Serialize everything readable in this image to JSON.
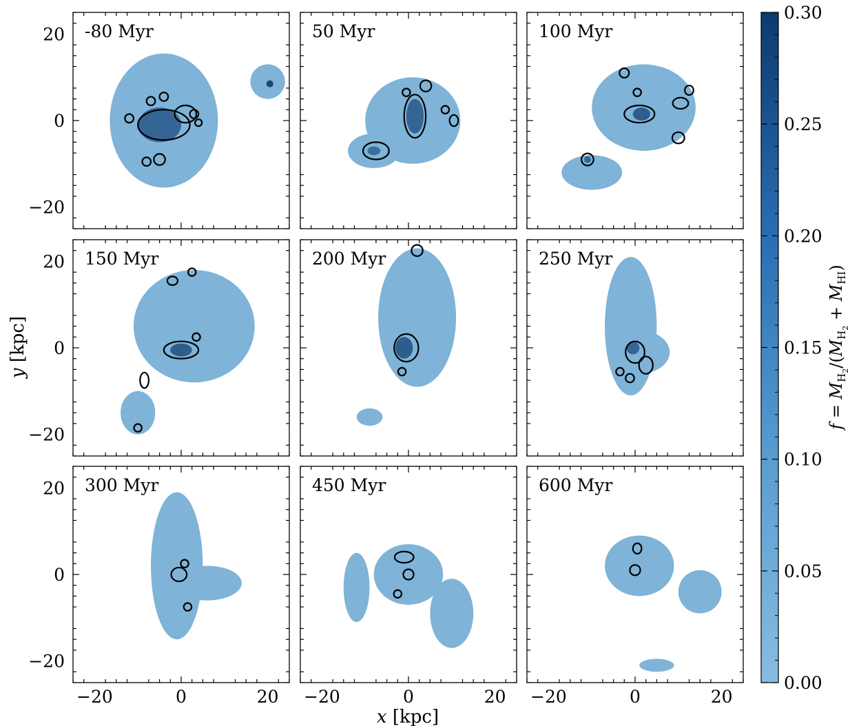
{
  "chart_data": {
    "type": "heatmap",
    "layout": "3x3 panel grid, shared axes",
    "xlabel": "x [kpc]",
    "ylabel": "y [kpc]",
    "xlim": [
      -25,
      25
    ],
    "ylim": [
      -25,
      25
    ],
    "x_ticks": [
      "−20",
      "0",
      "20"
    ],
    "y_ticks": [
      "20",
      "0",
      "−20"
    ],
    "colorbar": {
      "label": "f = M_H2/(M_H2 + M_HI)",
      "range": [
        0.0,
        0.3
      ],
      "ticks": [
        "0.00",
        "0.05",
        "0.10",
        "0.15",
        "0.20",
        "0.25",
        "0.30"
      ],
      "colormap": "Blues",
      "color_min": "#87bcdf",
      "color_max": "#0c3a6e"
    },
    "contour_color": "#000000",
    "panels": [
      {
        "label": "-80 Myr",
        "regions": [
          {
            "shape": "ellipse",
            "cx": -4,
            "cy": 0,
            "rx": 12.5,
            "ry": 15.5,
            "f": 0.02
          },
          {
            "shape": "ellipse",
            "cx": 20,
            "cy": 9,
            "rx": 4,
            "ry": 4,
            "f": 0.02
          },
          {
            "shape": "ellipse",
            "cx": -5,
            "cy": -1,
            "rx": 5,
            "ry": 4,
            "f": 0.2
          },
          {
            "shape": "ellipse",
            "cx": 20.5,
            "cy": 8.5,
            "rx": 0.8,
            "ry": 0.8,
            "f": 0.27
          }
        ],
        "contours": [
          {
            "cx": -4,
            "cy": -1,
            "rx": 6,
            "ry": 3.5
          },
          {
            "cx": 1,
            "cy": 1.5,
            "rx": 2.5,
            "ry": 2
          },
          {
            "cx": -12,
            "cy": 0.5,
            "rx": 1,
            "ry": 1
          },
          {
            "cx": -7,
            "cy": 4.5,
            "rx": 1,
            "ry": 1
          },
          {
            "cx": -4,
            "cy": 5.5,
            "rx": 1,
            "ry": 1
          },
          {
            "cx": 3,
            "cy": 1.5,
            "rx": 1,
            "ry": 1
          },
          {
            "cx": 4,
            "cy": -0.5,
            "rx": 0.8,
            "ry": 0.8
          },
          {
            "cx": -8,
            "cy": -9.5,
            "rx": 1,
            "ry": 1
          },
          {
            "cx": -5,
            "cy": -9,
            "rx": 1.3,
            "ry": 1.3
          }
        ]
      },
      {
        "label": "50 Myr",
        "regions": [
          {
            "shape": "ellipse",
            "cx": 1,
            "cy": 0,
            "rx": 11,
            "ry": 10,
            "f": 0.02
          },
          {
            "shape": "ellipse",
            "cx": -8,
            "cy": -7,
            "rx": 6,
            "ry": 4,
            "f": 0.02
          },
          {
            "shape": "ellipse",
            "cx": 1.5,
            "cy": 1,
            "rx": 2,
            "ry": 4,
            "f": 0.2
          },
          {
            "shape": "ellipse",
            "cx": -8,
            "cy": -7,
            "rx": 1.5,
            "ry": 1,
            "f": 0.18
          }
        ],
        "contours": [
          {
            "cx": 1.5,
            "cy": 1,
            "rx": 2.5,
            "ry": 5
          },
          {
            "cx": -7.5,
            "cy": -7,
            "rx": 3,
            "ry": 2
          },
          {
            "cx": 4,
            "cy": 8,
            "rx": 1.3,
            "ry": 1.3
          },
          {
            "cx": -0.5,
            "cy": 6.5,
            "rx": 0.9,
            "ry": 0.9
          },
          {
            "cx": 8.5,
            "cy": 2.5,
            "rx": 0.9,
            "ry": 0.9
          },
          {
            "cx": 10.5,
            "cy": 0,
            "rx": 1,
            "ry": 1.3
          }
        ]
      },
      {
        "label": "100 Myr",
        "regions": [
          {
            "shape": "ellipse",
            "cx": 2,
            "cy": 3,
            "rx": 12,
            "ry": 10,
            "f": 0.02
          },
          {
            "shape": "ellipse",
            "cx": -10,
            "cy": -12,
            "rx": 7,
            "ry": 4,
            "f": 0.02
          },
          {
            "shape": "ellipse",
            "cx": 1.5,
            "cy": 1.5,
            "rx": 2,
            "ry": 1.5,
            "f": 0.22
          },
          {
            "shape": "ellipse",
            "cx": -11,
            "cy": -9,
            "rx": 0.8,
            "ry": 0.8,
            "f": 0.2
          }
        ],
        "contours": [
          {
            "cx": 1,
            "cy": 1.5,
            "rx": 3.5,
            "ry": 2
          },
          {
            "cx": -2.5,
            "cy": 11,
            "rx": 1.1,
            "ry": 1.1
          },
          {
            "cx": 0.5,
            "cy": 6.5,
            "rx": 0.9,
            "ry": 0.9
          },
          {
            "cx": 12.5,
            "cy": 7,
            "rx": 1,
            "ry": 1.1
          },
          {
            "cx": 10.5,
            "cy": 4,
            "rx": 1.8,
            "ry": 1.3
          },
          {
            "cx": 10,
            "cy": -4,
            "rx": 1.4,
            "ry": 1.3
          },
          {
            "cx": -11,
            "cy": -9,
            "rx": 1.4,
            "ry": 1.4
          }
        ]
      },
      {
        "label": "150 Myr",
        "regions": [
          {
            "shape": "ellipse",
            "cx": 3,
            "cy": 5,
            "rx": 14,
            "ry": 13,
            "f": 0.02
          },
          {
            "shape": "ellipse",
            "cx": -10,
            "cy": -15,
            "rx": 4,
            "ry": 5,
            "f": 0.02
          },
          {
            "shape": "ellipse",
            "cx": 0,
            "cy": -0.5,
            "rx": 2.5,
            "ry": 1.5,
            "f": 0.22
          }
        ],
        "contours": [
          {
            "cx": 0,
            "cy": -0.5,
            "rx": 4,
            "ry": 2
          },
          {
            "cx": -2,
            "cy": 15.5,
            "rx": 1.2,
            "ry": 1
          },
          {
            "cx": 2.5,
            "cy": 17.5,
            "rx": 0.9,
            "ry": 0.9
          },
          {
            "cx": 3.5,
            "cy": 2.5,
            "rx": 0.9,
            "ry": 0.9
          },
          {
            "cx": -8.5,
            "cy": -7.5,
            "rx": 1,
            "ry": 1.8
          },
          {
            "cx": -10,
            "cy": -18.5,
            "rx": 0.9,
            "ry": 0.9
          }
        ]
      },
      {
        "label": "200 Myr",
        "regions": [
          {
            "shape": "ellipse",
            "cx": 2,
            "cy": 7,
            "rx": 9,
            "ry": 16,
            "f": 0.02
          },
          {
            "shape": "ellipse",
            "cx": -9,
            "cy": -16,
            "rx": 3,
            "ry": 2,
            "f": 0.02
          },
          {
            "shape": "ellipse",
            "cx": -1,
            "cy": 0,
            "rx": 2,
            "ry": 2.5,
            "f": 0.22
          }
        ],
        "contours": [
          {
            "cx": -0.5,
            "cy": 0,
            "rx": 2.8,
            "ry": 3.2
          },
          {
            "cx": 2,
            "cy": 22.5,
            "rx": 1.3,
            "ry": 1.3
          },
          {
            "cx": -1.5,
            "cy": -5.5,
            "rx": 0.9,
            "ry": 0.9
          }
        ]
      },
      {
        "label": "250 Myr",
        "regions": [
          {
            "shape": "ellipse",
            "cx": -1,
            "cy": 5,
            "rx": 6,
            "ry": 16,
            "f": 0.02
          },
          {
            "shape": "ellipse",
            "cx": 1,
            "cy": -1,
            "rx": 7,
            "ry": 5,
            "f": 0.02
          },
          {
            "shape": "ellipse",
            "cx": -0.5,
            "cy": 0,
            "rx": 1.5,
            "ry": 1.5,
            "f": 0.2
          }
        ],
        "contours": [
          {
            "cx": 0,
            "cy": -1,
            "rx": 2.2,
            "ry": 2.5
          },
          {
            "cx": 2.5,
            "cy": -4,
            "rx": 1.6,
            "ry": 2
          },
          {
            "cx": -1.2,
            "cy": -7,
            "rx": 1,
            "ry": 1
          },
          {
            "cx": -3.5,
            "cy": -5.5,
            "rx": 0.9,
            "ry": 0.9
          }
        ]
      },
      {
        "label": "300 Myr",
        "regions": [
          {
            "shape": "ellipse",
            "cx": -1,
            "cy": 2,
            "rx": 6,
            "ry": 17,
            "f": 0.02
          },
          {
            "shape": "ellipse",
            "cx": 6,
            "cy": -2,
            "rx": 8,
            "ry": 4,
            "f": 0.02
          }
        ],
        "contours": [
          {
            "cx": -0.5,
            "cy": 0,
            "rx": 1.8,
            "ry": 1.6
          },
          {
            "cx": 0.8,
            "cy": 2.5,
            "rx": 0.9,
            "ry": 0.9
          },
          {
            "cx": 1.5,
            "cy": -7.5,
            "rx": 0.9,
            "ry": 0.9
          }
        ]
      },
      {
        "label": "450 Myr",
        "regions": [
          {
            "shape": "ellipse",
            "cx": 0,
            "cy": 0,
            "rx": 8,
            "ry": 7,
            "f": 0.02
          },
          {
            "shape": "ellipse",
            "cx": -12,
            "cy": -3,
            "rx": 3,
            "ry": 8,
            "f": 0.02
          },
          {
            "shape": "ellipse",
            "cx": 10,
            "cy": -9,
            "rx": 5,
            "ry": 8,
            "f": 0.02
          }
        ],
        "contours": [
          {
            "cx": -1,
            "cy": 4,
            "rx": 2.2,
            "ry": 1.3
          },
          {
            "cx": 0,
            "cy": 0,
            "rx": 1.2,
            "ry": 1.2
          },
          {
            "cx": -2.5,
            "cy": -4.5,
            "rx": 0.9,
            "ry": 0.9
          }
        ]
      },
      {
        "label": "600 Myr",
        "regions": [
          {
            "shape": "ellipse",
            "cx": 1,
            "cy": 2,
            "rx": 8,
            "ry": 7,
            "f": 0.02
          },
          {
            "shape": "ellipse",
            "cx": 15,
            "cy": -4,
            "rx": 5,
            "ry": 5,
            "f": 0.02
          },
          {
            "shape": "ellipse",
            "cx": 5,
            "cy": -21,
            "rx": 4,
            "ry": 1.5,
            "f": 0.02
          }
        ],
        "contours": [
          {
            "cx": 0,
            "cy": 1,
            "rx": 1.2,
            "ry": 1.2
          },
          {
            "cx": 0.5,
            "cy": 6,
            "rx": 1,
            "ry": 1.2
          }
        ]
      }
    ]
  }
}
